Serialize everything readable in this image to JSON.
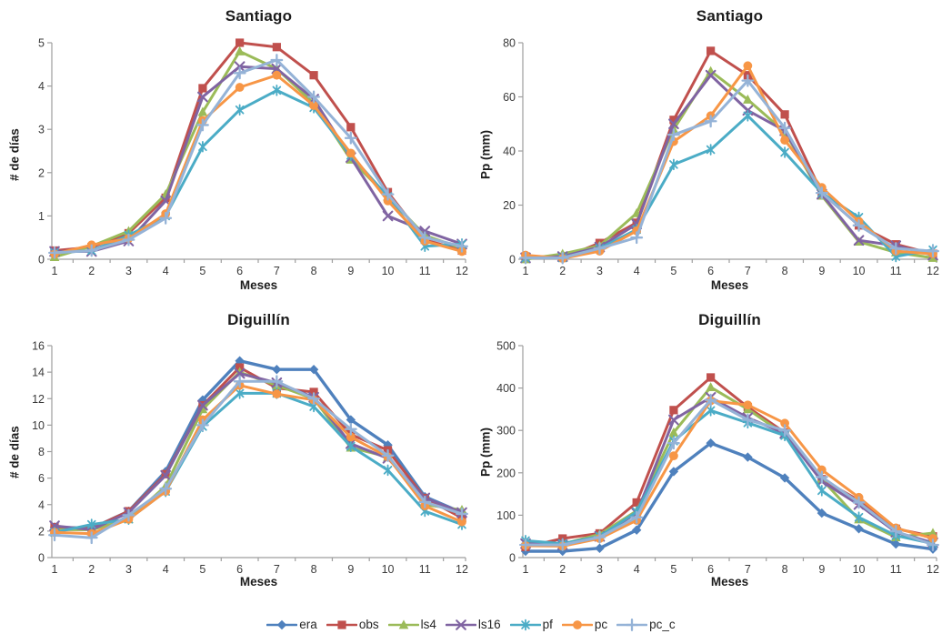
{
  "figure": {
    "type": "panel-of-line-charts",
    "background": "#ffffff",
    "axis_color": "#9e9e9e",
    "tick_label_color": "#3a3a3a"
  },
  "legend": {
    "position": "bottom-center",
    "items": [
      {
        "label": "era",
        "color": "#4F81BD",
        "marker": "diamond"
      },
      {
        "label": "obs",
        "color": "#C0504D",
        "marker": "square"
      },
      {
        "label": "ls4",
        "color": "#9BBB59",
        "marker": "triangle"
      },
      {
        "label": "ls16",
        "color": "#8064A2",
        "marker": "x"
      },
      {
        "label": "pf",
        "color": "#4BACC6",
        "marker": "asterisk"
      },
      {
        "label": "pc",
        "color": "#F79646",
        "marker": "circle"
      },
      {
        "label": "pc_c",
        "color": "#95B3D7",
        "marker": "plus"
      }
    ]
  },
  "chart_data": [
    {
      "type": "line",
      "title": "Santiago",
      "xlabel": "Meses",
      "ylabel": "# de días",
      "x": [
        1,
        2,
        3,
        4,
        5,
        6,
        7,
        8,
        9,
        10,
        11,
        12
      ],
      "ylim": [
        0,
        5
      ],
      "ytick_step": 1,
      "grid": false,
      "series": [
        {
          "name": "obs",
          "values": [
            0.2,
            0.28,
            0.6,
            1.42,
            3.95,
            5.0,
            4.9,
            4.25,
            3.05,
            1.55,
            0.45,
            0.2
          ]
        },
        {
          "name": "ls4",
          "values": [
            0.05,
            0.3,
            0.65,
            1.5,
            3.4,
            4.8,
            4.4,
            3.6,
            2.3,
            1.45,
            0.55,
            0.25
          ]
        },
        {
          "name": "ls16",
          "values": [
            0.18,
            0.18,
            0.42,
            1.35,
            3.75,
            4.45,
            4.4,
            3.7,
            2.35,
            1.0,
            0.65,
            0.35
          ]
        },
        {
          "name": "pf",
          "values": [
            0.15,
            0.2,
            0.55,
            1.0,
            2.6,
            3.45,
            3.9,
            3.5,
            2.4,
            1.45,
            0.3,
            0.35
          ]
        },
        {
          "name": "pc",
          "values": [
            0.12,
            0.33,
            0.48,
            1.05,
            3.2,
            3.97,
            4.25,
            3.55,
            2.45,
            1.35,
            0.42,
            0.18
          ]
        },
        {
          "name": "pc_c",
          "values": [
            0.15,
            0.2,
            0.45,
            0.95,
            3.1,
            4.3,
            4.6,
            3.75,
            2.8,
            1.5,
            0.5,
            0.3
          ]
        }
      ]
    },
    {
      "type": "line",
      "title": "Santiago",
      "xlabel": "Meses",
      "ylabel": "Pp (mm)",
      "x": [
        1,
        2,
        3,
        4,
        5,
        6,
        7,
        8,
        9,
        10,
        11,
        12
      ],
      "ylim": [
        0,
        80
      ],
      "ytick_step": 20,
      "grid": false,
      "series": [
        {
          "name": "obs",
          "values": [
            1.0,
            0.5,
            6.0,
            13.5,
            51.5,
            77.0,
            68.0,
            53.5,
            24.5,
            12.5,
            5.5,
            2.0
          ]
        },
        {
          "name": "ls4",
          "values": [
            0.0,
            2.0,
            5.0,
            17.0,
            48.0,
            69.5,
            59.0,
            47.0,
            23.5,
            6.5,
            2.5,
            0.5
          ]
        },
        {
          "name": "ls16",
          "values": [
            0.5,
            1.0,
            4.5,
            13.0,
            50.0,
            68.0,
            55.0,
            47.5,
            24.0,
            7.0,
            5.0,
            1.5
          ]
        },
        {
          "name": "pf",
          "values": [
            0.5,
            0.5,
            4.0,
            11.0,
            35.0,
            40.5,
            53.0,
            39.5,
            24.5,
            15.5,
            1.0,
            3.5
          ]
        },
        {
          "name": "pc",
          "values": [
            1.5,
            0.3,
            3.0,
            10.5,
            43.5,
            53.0,
            71.5,
            44.0,
            26.5,
            14.0,
            3.0,
            2.0
          ]
        },
        {
          "name": "pc_c",
          "values": [
            0.5,
            0.5,
            4.0,
            8.0,
            46.0,
            51.0,
            66.0,
            48.5,
            24.5,
            12.5,
            4.0,
            3.0
          ]
        }
      ]
    },
    {
      "type": "line",
      "title": "Diguillín",
      "xlabel": "Meses",
      "ylabel": "# de días",
      "x": [
        1,
        2,
        3,
        4,
        5,
        6,
        7,
        8,
        9,
        10,
        11,
        12
      ],
      "ylim": [
        0,
        16
      ],
      "ytick_step": 2,
      "grid": false,
      "series": [
        {
          "name": "era",
          "values": [
            2.3,
            2.2,
            3.5,
            6.5,
            11.9,
            14.85,
            14.2,
            14.2,
            10.4,
            8.5,
            4.6,
            3.4
          ]
        },
        {
          "name": "obs",
          "values": [
            2.3,
            2.2,
            3.5,
            6.3,
            11.5,
            14.35,
            12.8,
            12.5,
            9.3,
            8.1,
            4.5,
            3.0
          ]
        },
        {
          "name": "ls4",
          "values": [
            2.1,
            2.1,
            2.9,
            5.4,
            11.2,
            14.0,
            13.0,
            12.0,
            8.3,
            7.6,
            4.0,
            3.6
          ]
        },
        {
          "name": "ls16",
          "values": [
            2.4,
            2.1,
            3.4,
            6.2,
            11.5,
            13.9,
            13.2,
            12.1,
            8.6,
            7.5,
            4.5,
            3.4
          ]
        },
        {
          "name": "pf",
          "values": [
            1.9,
            2.5,
            2.9,
            5.0,
            9.9,
            12.4,
            12.4,
            11.4,
            8.4,
            6.6,
            3.5,
            2.5
          ]
        },
        {
          "name": "pc",
          "values": [
            1.9,
            1.8,
            2.9,
            5.0,
            10.4,
            13.0,
            12.35,
            11.9,
            9.1,
            7.6,
            3.9,
            2.7
          ]
        },
        {
          "name": "pc_c",
          "values": [
            1.7,
            1.5,
            3.2,
            5.2,
            10.0,
            13.3,
            13.3,
            12.0,
            9.7,
            7.7,
            4.2,
            3.3
          ]
        }
      ]
    },
    {
      "type": "line",
      "title": "Diguillín",
      "xlabel": "Meses",
      "ylabel": "Pp (mm)",
      "x": [
        1,
        2,
        3,
        4,
        5,
        6,
        7,
        8,
        9,
        10,
        11,
        12
      ],
      "ylim": [
        0,
        500
      ],
      "ytick_step": 100,
      "grid": false,
      "series": [
        {
          "name": "era",
          "values": [
            15,
            15,
            22,
            65,
            203,
            270,
            237,
            188,
            105,
            68,
            32,
            20
          ]
        },
        {
          "name": "obs",
          "values": [
            25,
            45,
            57,
            130,
            348,
            425,
            355,
            295,
            185,
            135,
            68,
            50
          ]
        },
        {
          "name": "ls4",
          "values": [
            38,
            32,
            55,
            110,
            295,
            402,
            350,
            290,
            185,
            90,
            48,
            58
          ]
        },
        {
          "name": "ls16",
          "values": [
            33,
            30,
            50,
            105,
            325,
            378,
            330,
            293,
            180,
            125,
            60,
            35
          ]
        },
        {
          "name": "pf",
          "values": [
            40,
            33,
            50,
            108,
            275,
            347,
            318,
            288,
            158,
            95,
            52,
            33
          ]
        },
        {
          "name": "pc",
          "values": [
            28,
            27,
            45,
            88,
            240,
            370,
            360,
            317,
            207,
            142,
            70,
            45
          ]
        },
        {
          "name": "pc_c",
          "values": [
            30,
            30,
            48,
            95,
            270,
            372,
            325,
            300,
            190,
            130,
            62,
            30
          ]
        }
      ]
    }
  ]
}
